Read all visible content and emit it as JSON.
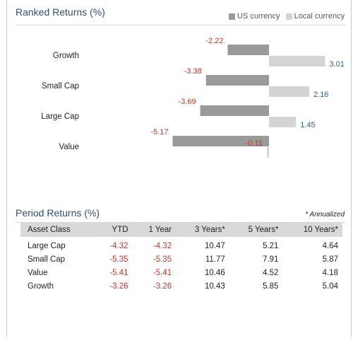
{
  "chart_title": "Ranked Returns (%)",
  "legend": [
    {
      "label": "US currency",
      "color": "#9a9a9a"
    },
    {
      "label": "Local currency",
      "color": "#d4d4d4"
    }
  ],
  "chart_data": {
    "type": "bar",
    "orientation": "horizontal",
    "categories": [
      "Growth",
      "Small Cap",
      "Large Cap",
      "Value"
    ],
    "series": [
      {
        "name": "US currency",
        "values": [
          -2.22,
          -3.38,
          -3.69,
          -5.17
        ],
        "color": "#9a9a9a"
      },
      {
        "name": "Local currency",
        "values": [
          3.01,
          2.16,
          1.45,
          -0.11
        ],
        "color": "#d4d4d4"
      }
    ],
    "label_colors": {
      "negative": "#c0392b",
      "positive": "#2e5f8a"
    },
    "title": "Ranked Returns (%)",
    "xlabel": "",
    "ylabel": "",
    "legend_position": "top-right",
    "grid": false
  },
  "table_section": {
    "title": "Period Returns (%)",
    "note": "* Annualized",
    "columns": [
      "Asset Class",
      "YTD",
      "1 Year",
      "3 Years*",
      "5 Years*",
      "10 Years*"
    ],
    "rows": [
      [
        "Large Cap",
        "-4.32",
        "-4.32",
        "10.47",
        "5.21",
        "4.64"
      ],
      [
        "Small Cap",
        "-5.35",
        "-5.35",
        "11.77",
        "7.91",
        "5.87"
      ],
      [
        "Value",
        "-5.41",
        "-5.41",
        "10.46",
        "4.52",
        "4.18"
      ],
      [
        "Growth",
        "-3.26",
        "-3.26",
        "10.43",
        "5.85",
        "5.04"
      ]
    ]
  }
}
